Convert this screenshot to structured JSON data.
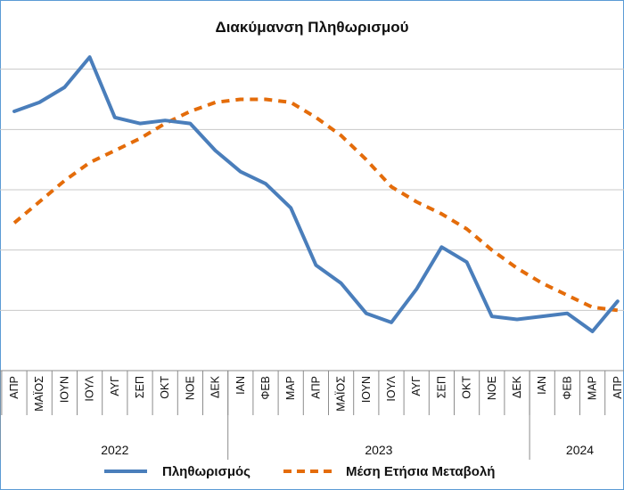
{
  "chart_data": {
    "type": "line",
    "title": "Διακύμανση Πληθωρισμού",
    "categories": [
      "ΑΠΡ",
      "ΜΑΪΟΣ",
      "ΙΟΥΝ",
      "ΙΟΥΛ",
      "ΑΥΓ",
      "ΣΕΠ",
      "ΟΚΤ",
      "ΝΟΕ",
      "ΔΕΚ",
      "ΙΑΝ",
      "ΦΕΒ",
      "ΜΑΡ",
      "ΑΠΡ",
      "ΜΑΪΟΣ",
      "ΙΟΥΝ",
      "ΙΟΥΛ",
      "ΑΥΓ",
      "ΣΕΠ",
      "ΟΚΤ",
      "ΝΟΕ",
      "ΔΕΚ",
      "ΙΑΝ",
      "ΦΕΒ",
      "ΜΑΡ",
      "ΑΠΡ"
    ],
    "year_groups": [
      {
        "label": "2022",
        "count": 9
      },
      {
        "label": "2023",
        "count": 12
      },
      {
        "label": "2024",
        "count": 4
      }
    ],
    "ylim": [
      0,
      12
    ],
    "gridlines": true,
    "legend_position": "bottom",
    "series": [
      {
        "name": "Πληθωρισμός",
        "color": "#4a7ebb",
        "style": "solid",
        "values": [
          8.6,
          8.9,
          9.4,
          10.4,
          8.4,
          8.2,
          8.3,
          8.2,
          7.3,
          6.6,
          6.2,
          5.4,
          3.5,
          2.9,
          1.9,
          1.6,
          2.7,
          4.1,
          3.6,
          1.8,
          1.7,
          1.8,
          1.9,
          1.3,
          2.3
        ]
      },
      {
        "name": "Μέση Ετήσια Μεταβολή",
        "color": "#e46c0a",
        "style": "dashed",
        "values": [
          4.9,
          5.6,
          6.3,
          6.9,
          7.3,
          7.7,
          8.2,
          8.6,
          8.9,
          9.0,
          9.0,
          8.9,
          8.4,
          7.8,
          7.0,
          6.1,
          5.6,
          5.2,
          4.7,
          4.0,
          3.4,
          2.9,
          2.5,
          2.1,
          2.0
        ]
      }
    ]
  }
}
